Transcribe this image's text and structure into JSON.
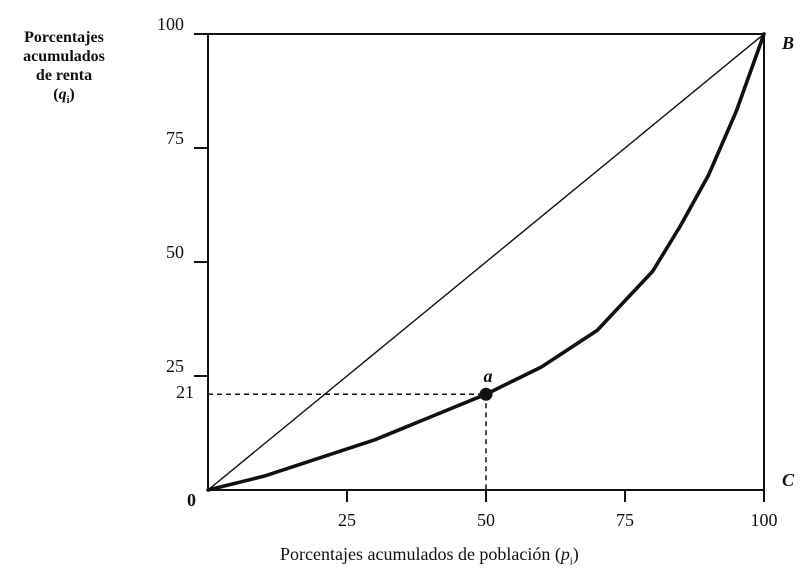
{
  "chart_data": {
    "type": "line",
    "ylabel_lines": [
      "Porcentajes",
      "acumulados",
      "de renta"
    ],
    "ylabel_symbol": "q",
    "ylabel_subscript": "i",
    "xlabel_text": "Porcentajes acumulados de población",
    "xlabel_symbol": "p",
    "xlabel_subscript": "i",
    "xlim": [
      0,
      100
    ],
    "ylim": [
      0,
      100
    ],
    "x_ticks": [
      {
        "value": 25,
        "label": "25"
      },
      {
        "value": 50,
        "label": "50"
      },
      {
        "value": 75,
        "label": "75"
      },
      {
        "value": 100,
        "label": "100"
      }
    ],
    "y_ticks": [
      {
        "value": 25,
        "label": "25"
      },
      {
        "value": 50,
        "label": "50"
      },
      {
        "value": 75,
        "label": "75"
      },
      {
        "value": 100,
        "label": "100"
      }
    ],
    "origin_label": "0",
    "series": [
      {
        "role": "equality-line",
        "x": [
          0,
          100
        ],
        "y": [
          0,
          100
        ]
      },
      {
        "role": "lorenz-curve",
        "x": [
          0,
          10,
          20,
          30,
          40,
          50,
          60,
          70,
          80,
          85,
          90,
          95,
          100
        ],
        "y": [
          0,
          3,
          7,
          11,
          16,
          21,
          27,
          35,
          48,
          58,
          69,
          83,
          100
        ]
      }
    ],
    "annotations": [
      {
        "label": "a",
        "x": 50,
        "y": 21,
        "value_label": "21",
        "dashed_guides": true
      },
      {
        "label": "B",
        "x": 100,
        "y": 100
      },
      {
        "label": "C",
        "x": 100,
        "y": 0
      }
    ]
  }
}
